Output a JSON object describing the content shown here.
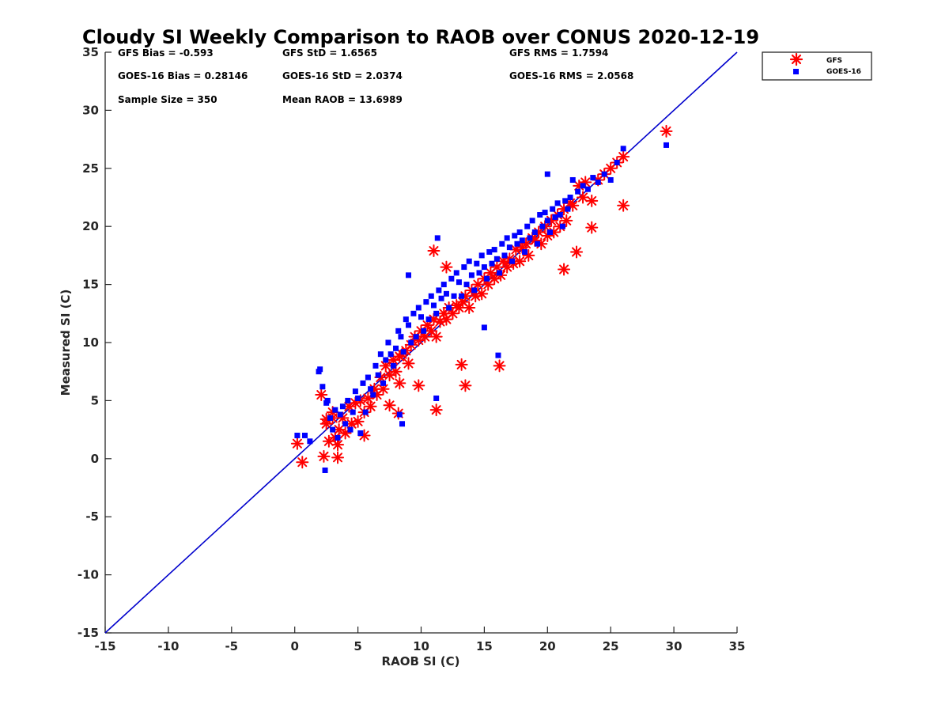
{
  "chart_data": {
    "type": "scatter",
    "title": "Cloudy SI Weekly Comparison to RAOB over CONUS 2020-12-19",
    "xlabel": "RAOB SI (C)",
    "ylabel": "Measured SI (C)",
    "xlim": [
      -15,
      35
    ],
    "ylim": [
      -15,
      35
    ],
    "xticks": [
      -15,
      -10,
      -5,
      0,
      5,
      10,
      15,
      20,
      25,
      30,
      35
    ],
    "yticks": [
      -15,
      -10,
      -5,
      0,
      5,
      10,
      15,
      20,
      25,
      30,
      35
    ],
    "xtick_labels": [
      "-15",
      "-10",
      "-5",
      "0",
      "5",
      "10",
      "15",
      "20",
      "25",
      "30",
      "35"
    ],
    "ytick_labels": [
      "-15",
      "-10",
      "-5",
      "0",
      "5",
      "10",
      "15",
      "20",
      "25",
      "30",
      "35"
    ],
    "grid": false,
    "legend_position": "outside-top-right",
    "reference_line": {
      "x": [
        -15,
        35
      ],
      "y": [
        -15,
        35
      ],
      "color": "#0000cc"
    },
    "stats": [
      "GFS Bias = -0.593",
      "GFS StD = 1.6565",
      "GFS RMS = 1.7594",
      "GOES-16 Bias = 0.28146",
      "GOES-16 StD = 2.0374",
      "GOES-16 RMS = 2.0568",
      "Sample Size = 350",
      "Mean RAOB = 13.6989"
    ],
    "series": [
      {
        "name": "GFS",
        "marker": "asterisk",
        "color": "#ff0000",
        "x": [
          0.2,
          0.6,
          2.1,
          2.3,
          2.5,
          2.7,
          3.0,
          3.2,
          3.4,
          3.5,
          3.8,
          4.0,
          4.3,
          4.5,
          4.8,
          5.0,
          5.2,
          5.5,
          5.8,
          6.0,
          6.3,
          6.5,
          6.8,
          7.0,
          7.2,
          7.5,
          7.8,
          8.0,
          8.3,
          8.5,
          8.8,
          9.0,
          9.2,
          9.5,
          9.8,
          10.0,
          10.3,
          10.5,
          10.8,
          11.0,
          11.2,
          11.5,
          11.8,
          12.0,
          12.2,
          12.5,
          12.8,
          13.0,
          13.3,
          13.5,
          13.8,
          14.0,
          14.3,
          14.5,
          14.8,
          15.0,
          15.3,
          15.5,
          15.8,
          16.0,
          16.3,
          16.5,
          16.8,
          17.0,
          17.3,
          17.5,
          17.8,
          18.0,
          18.3,
          18.5,
          18.8,
          19.0,
          19.3,
          19.5,
          19.8,
          20.0,
          20.3,
          20.5,
          20.8,
          21.0,
          21.3,
          21.5,
          21.8,
          22.0,
          22.3,
          22.5,
          22.8,
          23.0,
          23.5,
          24.0,
          24.5,
          25.0,
          25.5,
          26.0,
          26.0,
          29.4,
          11.2,
          11.0,
          13.5,
          16.2,
          13.2,
          9.8,
          7.5,
          8.3,
          2.5,
          3.4,
          5.5,
          12.0,
          21.3,
          23.5,
          8.2,
          3.0
        ],
        "y": [
          1.3,
          -0.3,
          5.5,
          0.2,
          3.0,
          1.5,
          4.0,
          1.8,
          0.1,
          2.5,
          3.5,
          2.2,
          4.5,
          3.0,
          4.8,
          3.2,
          5.0,
          4.0,
          5.2,
          4.5,
          6.0,
          5.5,
          7.0,
          6.0,
          8.0,
          7.2,
          8.5,
          7.5,
          8.8,
          9.0,
          9.3,
          8.2,
          9.8,
          10.5,
          10.2,
          11.0,
          10.5,
          11.5,
          11.0,
          12.0,
          10.5,
          11.8,
          12.5,
          12.0,
          13.0,
          12.5,
          13.2,
          13.0,
          13.5,
          14.0,
          13.0,
          14.5,
          14.0,
          15.0,
          14.2,
          15.5,
          15.0,
          16.0,
          15.5,
          16.5,
          15.8,
          17.0,
          16.5,
          17.2,
          16.8,
          18.0,
          17.0,
          18.2,
          18.5,
          17.5,
          19.0,
          18.8,
          19.5,
          18.5,
          20.0,
          19.2,
          20.5,
          19.5,
          21.0,
          20.0,
          21.5,
          20.5,
          22.0,
          21.8,
          17.8,
          23.5,
          22.5,
          23.8,
          22.2,
          24.0,
          24.5,
          25.0,
          25.5,
          26.0,
          21.8,
          28.2,
          4.2,
          17.9,
          6.3,
          8.0,
          8.1,
          6.3,
          4.6,
          6.5,
          3.4,
          1.2,
          2.0,
          16.5,
          16.3,
          19.9,
          3.9,
          3.5
        ]
      },
      {
        "name": "GOES-16",
        "marker": "square",
        "color": "#0000ff",
        "x": [
          0.2,
          0.8,
          1.2,
          2.0,
          2.2,
          2.4,
          2.6,
          2.8,
          3.0,
          3.2,
          3.4,
          3.6,
          3.8,
          4.0,
          4.2,
          4.4,
          4.6,
          4.8,
          5.0,
          5.2,
          5.4,
          5.6,
          5.8,
          6.0,
          6.2,
          6.4,
          6.6,
          6.8,
          7.0,
          7.2,
          7.4,
          7.6,
          7.8,
          8.0,
          8.2,
          8.4,
          8.6,
          8.8,
          9.0,
          9.2,
          9.4,
          9.6,
          9.8,
          10.0,
          10.2,
          10.4,
          10.6,
          10.8,
          11.0,
          11.2,
          11.4,
          11.6,
          11.8,
          12.0,
          12.2,
          12.4,
          12.6,
          12.8,
          13.0,
          13.2,
          13.4,
          13.6,
          13.8,
          14.0,
          14.2,
          14.4,
          14.6,
          14.8,
          15.0,
          15.2,
          15.4,
          15.6,
          15.8,
          16.0,
          16.2,
          16.4,
          16.6,
          16.8,
          17.0,
          17.2,
          17.4,
          17.6,
          17.8,
          18.0,
          18.2,
          18.4,
          18.6,
          18.8,
          19.0,
          19.2,
          19.4,
          19.6,
          19.8,
          20.0,
          20.2,
          20.4,
          20.6,
          20.8,
          21.0,
          21.2,
          21.4,
          21.6,
          21.8,
          22.0,
          22.4,
          22.8,
          23.2,
          23.6,
          24.0,
          24.5,
          25.0,
          25.5,
          26.0,
          29.4,
          20.0,
          11.3,
          16.1,
          8.3,
          2.5,
          1.9,
          9.0,
          11.2,
          8.5,
          15.0
        ],
        "y": [
          2.0,
          2.0,
          1.5,
          7.7,
          6.2,
          -1.0,
          5.0,
          3.5,
          2.5,
          4.2,
          1.8,
          3.8,
          4.5,
          3.0,
          5.0,
          2.5,
          4.0,
          5.8,
          5.2,
          2.2,
          6.5,
          4.0,
          7.0,
          6.0,
          5.5,
          8.0,
          7.2,
          9.0,
          6.5,
          8.5,
          10.0,
          9.0,
          8.0,
          9.5,
          11.0,
          10.5,
          9.2,
          12.0,
          11.5,
          10.0,
          12.5,
          10.5,
          13.0,
          12.2,
          11.0,
          13.5,
          12.0,
          14.0,
          13.2,
          12.5,
          14.5,
          13.8,
          15.0,
          14.2,
          13.0,
          15.5,
          14.0,
          16.0,
          15.2,
          14.0,
          16.5,
          15.0,
          17.0,
          15.8,
          14.5,
          16.8,
          16.0,
          17.5,
          16.5,
          15.5,
          17.8,
          16.8,
          18.0,
          17.2,
          16.0,
          18.5,
          17.5,
          19.0,
          18.2,
          17.0,
          19.2,
          18.5,
          19.5,
          18.8,
          17.8,
          20.0,
          19.0,
          20.5,
          19.5,
          18.5,
          21.0,
          20.0,
          21.2,
          20.5,
          19.5,
          21.5,
          20.8,
          22.0,
          21.0,
          20.0,
          22.2,
          21.5,
          22.5,
          24.0,
          23.0,
          23.5,
          23.2,
          24.2,
          23.8,
          24.5,
          24.0,
          25.5,
          26.7,
          27.0,
          24.5,
          19.0,
          8.9,
          3.8,
          4.8,
          7.5,
          15.8,
          5.2,
          3.0,
          11.3
        ]
      }
    ]
  },
  "legend": {
    "entries": [
      "GFS",
      "GOES-16"
    ]
  }
}
